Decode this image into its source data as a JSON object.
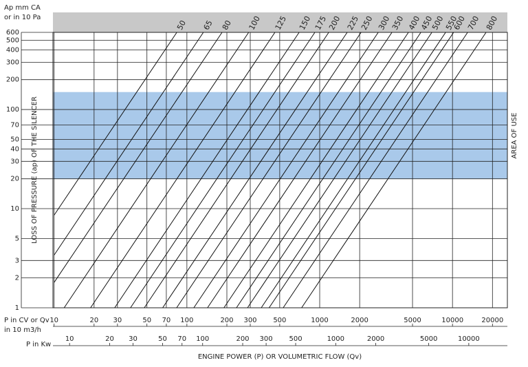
{
  "chart_data": {
    "type": "line",
    "y_label_lines": [
      "Ap mm CA",
      "or in 10 Pa"
    ],
    "y_title": "LOSS OF PRESSURE (ap) OF THE SILENCER",
    "band_label": "AREA OF USE",
    "band": [
      20,
      150
    ],
    "band_color": "#a9c9ea",
    "x_label_lines": [
      "P in CV or Qv",
      "in 10 m3/h"
    ],
    "x2_label": "P in Kw",
    "x_title": "ENGINE POWER (P) OR VOLUMETRIC FLOW (Qv)",
    "log_x": true,
    "log_y": true,
    "grid": true,
    "xlim": [
      9.8,
      25900
    ],
    "xticks": [
      10,
      20,
      30,
      50,
      70,
      100,
      200,
      300,
      500,
      1000,
      2000,
      5000,
      10000,
      20000
    ],
    "x2lim": [
      7.5,
      19500
    ],
    "x2ticks": [
      10,
      20,
      30,
      50,
      70,
      100,
      200,
      300,
      500,
      1000,
      2000,
      5000,
      10000
    ],
    "ylim": [
      1,
      600
    ],
    "yticks": [
      1,
      2,
      3,
      5,
      10,
      20,
      30,
      40,
      50,
      70,
      100,
      200,
      300,
      400,
      500,
      600
    ],
    "line_color": "#111111",
    "series": [
      {
        "name": "50",
        "x": [
          10,
          84
        ],
        "values": [
          8.6,
          600
        ]
      },
      {
        "name": "65",
        "x": [
          10,
          133
        ],
        "values": [
          3.4,
          600
        ]
      },
      {
        "name": "80",
        "x": [
          10,
          184
        ],
        "values": [
          1.8,
          600
        ]
      },
      {
        "name": "100",
        "x": [
          11.9,
          292
        ],
        "values": [
          1,
          600
        ]
      },
      {
        "name": "125",
        "x": [
          18.8,
          460
        ],
        "values": [
          1,
          600
        ]
      },
      {
        "name": "150",
        "x": [
          28.6,
          700
        ],
        "values": [
          1,
          600
        ]
      },
      {
        "name": "175",
        "x": [
          37.6,
          920
        ],
        "values": [
          1,
          600
        ]
      },
      {
        "name": "200",
        "x": [
          47.8,
          1170
        ],
        "values": [
          1,
          600
        ]
      },
      {
        "name": "225",
        "x": [
          65.7,
          1610
        ],
        "values": [
          1,
          600
        ]
      },
      {
        "name": "250",
        "x": [
          83.7,
          2050
        ],
        "values": [
          1,
          600
        ]
      },
      {
        "name": "300",
        "x": [
          112.7,
          2760
        ],
        "values": [
          1,
          600
        ]
      },
      {
        "name": "350",
        "x": [
          142.9,
          3500
        ],
        "values": [
          1,
          600
        ]
      },
      {
        "name": "400",
        "x": [
          190,
          4660
        ],
        "values": [
          1,
          600
        ]
      },
      {
        "name": "450",
        "x": [
          236,
          5780
        ],
        "values": [
          1,
          600
        ]
      },
      {
        "name": "500",
        "x": [
          286,
          7000
        ],
        "values": [
          1,
          600
        ]
      },
      {
        "name": "550",
        "x": [
          363,
          8880
        ],
        "values": [
          1,
          600
        ]
      },
      {
        "name": "600",
        "x": [
          416,
          10200
        ],
        "values": [
          1,
          600
        ]
      },
      {
        "name": "700",
        "x": [
          531,
          13000
        ],
        "values": [
          1,
          600
        ]
      },
      {
        "name": "800",
        "x": [
          731,
          17900
        ],
        "values": [
          1,
          600
        ]
      }
    ]
  }
}
